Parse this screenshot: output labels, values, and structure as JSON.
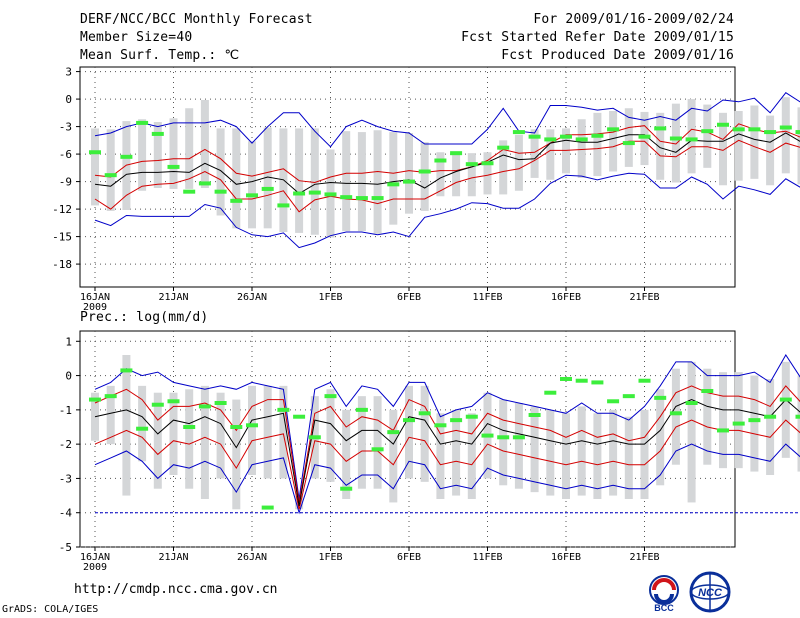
{
  "header": {
    "title": "DERF/NCC/BCC Monthly Forecast",
    "member_size": "Member Size=40",
    "variable_top": "Mean Surf. Temp.: ℃",
    "period": "For 2009/01/16-2009/02/24",
    "refer_date": "Fcst Started Refer Date 2009/01/15",
    "produced_date": "Fcst Produced Date 2009/01/16"
  },
  "colors": {
    "envelope": "#0000c8",
    "quartile": "#d40000",
    "median": "#000000",
    "box": "#d4d6d8",
    "mean_marker": "#3cee3c",
    "grid": "#555555"
  },
  "chart_data": [
    {
      "type": "box",
      "title": "Mean Surf. Temp.: ℃",
      "x_tick_labels": [
        "16JAN",
        "21JAN",
        "26JAN",
        "1FEB",
        "6FEB",
        "11FEB",
        "16FEB",
        "21FEB"
      ],
      "x_year_label": "2009",
      "x_range": [
        1,
        40
      ],
      "y_ticks": [
        3,
        0,
        -3,
        -6,
        -9,
        -12,
        -15,
        -18
      ],
      "ylim": [
        -20.5,
        3.5
      ],
      "series": {
        "max": [
          -4,
          -3.7,
          -3,
          -2.6,
          -3,
          -2.6,
          -2.6,
          -2.6,
          -2.3,
          -3,
          -4.8,
          -3,
          -1.5,
          -1.5,
          -3.5,
          -5.2,
          -3,
          -2.3,
          -3,
          -3.5,
          -3.7,
          -4.9,
          -4.9,
          -4.9,
          -4.9,
          -3.3,
          -1,
          -3.5,
          -3.7,
          -0.7,
          -0.7,
          -0.9,
          -1.2,
          -1,
          -2,
          -2.3,
          -1.9,
          -2.3,
          -1,
          -1.3,
          -0.1,
          -0.3,
          0.1,
          -1.5,
          0.7,
          -0.4,
          -0.3,
          -0.9,
          -1.1,
          0.2,
          0.1
        ],
        "p75": [
          -8.3,
          -8.5,
          -7.2,
          -6.8,
          -6.7,
          -6.5,
          -6.5,
          -5.5,
          -6.5,
          -8.1,
          -8.4,
          -8.0,
          -7.6,
          -8.9,
          -9.1,
          -8.5,
          -8.1,
          -8.1,
          -7.9,
          -8.1,
          -7.8,
          -8.0,
          -7.8,
          -7.8,
          -7.4,
          -6.7,
          -5.5,
          -5.9,
          -5.8,
          -4.8,
          -3.9,
          -3.9,
          -3.8,
          -3.6,
          -3.1,
          -2.9,
          -4.6,
          -4.9,
          -3.3,
          -3.6,
          -4.4,
          -2.7,
          -3.3,
          -3.7,
          -3.5,
          -4.2,
          -4.0,
          -3.5,
          -3.5,
          -2.4,
          -2.5
        ],
        "median": [
          -9.3,
          -9.5,
          -8.2,
          -8.0,
          -8.0,
          -7.9,
          -8.0,
          -7.0,
          -7.8,
          -9.3,
          -9.0,
          -8.5,
          -8.8,
          -10.3,
          -9.3,
          -9.1,
          -9.2,
          -9.2,
          -9.3,
          -9.0,
          -8.8,
          -9.7,
          -8.6,
          -7.9,
          -7.4,
          -6.9,
          -6.1,
          -6.6,
          -6.5,
          -4.8,
          -4.5,
          -4.7,
          -4.7,
          -4.3,
          -3.9,
          -3.9,
          -5.3,
          -5.8,
          -4.5,
          -4.6,
          -4.6,
          -3.8,
          -4.4,
          -4.7,
          -3.7,
          -4.7,
          -4.7,
          -4.3,
          -5.3,
          -3.2,
          -3.3
        ],
        "p25": [
          -10.9,
          -12.0,
          -10.5,
          -9.5,
          -9.3,
          -9.2,
          -8.7,
          -7.9,
          -8.8,
          -10.9,
          -10.9,
          -10.5,
          -10.0,
          -12.3,
          -11.0,
          -10.6,
          -10.9,
          -11.0,
          -11.4,
          -10.9,
          -10.9,
          -10.9,
          -10.0,
          -9.1,
          -8.6,
          -8.3,
          -7.9,
          -7.6,
          -6.7,
          -5.6,
          -5.6,
          -5.5,
          -5.4,
          -5.2,
          -4.6,
          -4.6,
          -6.2,
          -6.3,
          -5.2,
          -5.2,
          -5.6,
          -4.5,
          -5.2,
          -5.8,
          -4.8,
          -5.3,
          -5.5,
          -5.9,
          -6.5,
          -4.4,
          -4.3
        ],
        "min": [
          -13.2,
          -13.8,
          -12.7,
          -12.8,
          -12.8,
          -12.8,
          -12.8,
          -11.5,
          -11.9,
          -14.0,
          -14.8,
          -15.0,
          -14.6,
          -16.2,
          -15.7,
          -14.9,
          -14.5,
          -14.5,
          -14.8,
          -14.5,
          -15.0,
          -12.9,
          -12.5,
          -12.0,
          -11.3,
          -11.4,
          -11.9,
          -11.9,
          -10.9,
          -9.2,
          -8.3,
          -8.4,
          -8.8,
          -8.4,
          -8.1,
          -8.2,
          -9.7,
          -9.7,
          -8.5,
          -9.3,
          -10.9,
          -9.5,
          -9.9,
          -10.4,
          -8.7,
          -9.7,
          -9.6,
          -8.8,
          -10.7,
          -8.0,
          -7.9
        ],
        "box_hi": [
          -3.2,
          -3.3,
          -2.4,
          -2.2,
          -2.5,
          -2.1,
          -1.0,
          -0.1,
          -3.2,
          -3.2,
          -4.6,
          -3.1,
          -3.2,
          -3.2,
          -3.2,
          -5.5,
          -3.5,
          -3.6,
          -3.4,
          -3.6,
          -3.7,
          -4.7,
          -5.8,
          -5.8,
          -5.9,
          -5.8,
          -4.5,
          -3.9,
          -3.3,
          -3.3,
          -3.2,
          -2.2,
          -1.5,
          -1.3,
          -1.0,
          -1.4,
          -1.5,
          -0.5,
          0.0,
          -0.6,
          -1.5,
          -1.3,
          -0.7,
          -1.8,
          0.2,
          -0.9,
          -0.9,
          -1.2,
          -1.1,
          -0.3,
          -0.2
        ],
        "box_lo": [
          -11.6,
          -12.2,
          -12.1,
          -10.0,
          -9.7,
          -9.8,
          -9.8,
          -9.7,
          -12.7,
          -14.1,
          -14.1,
          -14.1,
          -14.5,
          -14.6,
          -14.8,
          -15.1,
          -14.4,
          -14.4,
          -14.7,
          -13.7,
          -12.5,
          -12.2,
          -10.6,
          -10.6,
          -10.6,
          -10.4,
          -10.4,
          -10.0,
          -8.6,
          -8.8,
          -8.1,
          -8.6,
          -8.4,
          -7.9,
          -7.4,
          -7.2,
          -8.8,
          -9.1,
          -8.1,
          -7.5,
          -9.4,
          -8.9,
          -8.7,
          -9.4,
          -8.1,
          -9.3,
          -9.1,
          -8.0,
          -9.3,
          -7.4,
          -7.6
        ],
        "mean": [
          -5.8,
          -8.3,
          -6.3,
          -2.6,
          -3.8,
          -7.4,
          -10.1,
          -9.2,
          -10.1,
          -11.1,
          -10.5,
          -9.8,
          -11.6,
          -10.3,
          -10.2,
          -10.4,
          -10.7,
          -10.8,
          -10.8,
          -9.3,
          -9.0,
          -7.9,
          -6.7,
          -5.9,
          -7.1,
          -7.0,
          -5.3,
          -3.6,
          -4.1,
          -4.4,
          -4.1,
          -4.4,
          -4.0,
          -3.3,
          -4.8,
          -4.1,
          -3.2,
          -4.3,
          -4.4,
          -3.5,
          -2.8,
          -3.3,
          -3.3,
          -3.6,
          -3.1,
          -3.6,
          -4.7,
          -3.7,
          -4.6,
          -3.2,
          -2.5
        ]
      }
    },
    {
      "type": "box",
      "title": "Prec.: log(mm/d)",
      "x_tick_labels": [
        "16JAN",
        "21JAN",
        "26JAN",
        "1FEB",
        "6FEB",
        "11FEB",
        "16FEB",
        "21FEB"
      ],
      "x_year_label": "2009",
      "x_range": [
        1,
        40
      ],
      "y_ticks": [
        1,
        0,
        -1,
        -2,
        -3,
        -4,
        -5
      ],
      "ylim": [
        -5,
        1.3
      ],
      "series": {
        "max": [
          -0.4,
          -0.2,
          0.2,
          0.0,
          0.1,
          -0.2,
          -0.3,
          -0.4,
          -0.3,
          -0.4,
          -0.2,
          -0.3,
          -0.4,
          -3.6,
          -0.4,
          -0.2,
          -0.9,
          -0.3,
          -0.4,
          -0.9,
          -0.2,
          -0.2,
          -1.2,
          -1.0,
          -0.9,
          -0.5,
          -0.7,
          -0.8,
          -0.9,
          -1.0,
          -1.1,
          -0.8,
          -1.1,
          -1.1,
          -1.3,
          -0.9,
          -0.3,
          0.4,
          0.4,
          0.0,
          0.0,
          0.0,
          0.1,
          -0.2,
          0.6,
          -0.1,
          -0.5,
          -0.3,
          -0.1,
          0.3,
          -0.6
        ],
        "p75": [
          -0.8,
          -0.6,
          -0.4,
          -0.7,
          -1.3,
          -0.9,
          -0.9,
          -0.8,
          -1.0,
          -1.6,
          -0.9,
          -0.7,
          -0.7,
          -3.7,
          -1.1,
          -0.9,
          -1.5,
          -1.2,
          -1.3,
          -1.6,
          -0.7,
          -0.9,
          -1.7,
          -1.6,
          -1.7,
          -1.1,
          -1.3,
          -1.4,
          -1.5,
          -1.6,
          -1.8,
          -1.6,
          -1.8,
          -1.7,
          -1.9,
          -1.8,
          -1.2,
          -0.5,
          -0.3,
          -0.5,
          -0.6,
          -0.6,
          -0.7,
          -0.9,
          -0.3,
          -0.8,
          -1.2,
          -1.0,
          -0.7,
          -0.3,
          -1.5
        ],
        "median": [
          -1.2,
          -1.1,
          -1.0,
          -1.2,
          -1.7,
          -1.3,
          -1.4,
          -1.2,
          -1.4,
          -2.1,
          -1.3,
          -1.2,
          -1.1,
          -3.8,
          -1.3,
          -1.4,
          -1.9,
          -1.6,
          -1.6,
          -2.0,
          -1.2,
          -1.3,
          -2.0,
          -1.9,
          -2.0,
          -1.4,
          -1.6,
          -1.7,
          -1.8,
          -1.9,
          -2.0,
          -1.9,
          -2.0,
          -1.9,
          -2.0,
          -2.0,
          -1.6,
          -0.9,
          -0.7,
          -0.9,
          -1.0,
          -1.0,
          -1.1,
          -1.2,
          -0.7,
          -1.1,
          -1.5,
          -1.3,
          -1.0,
          -0.6,
          -1.8
        ],
        "p25": [
          -2.0,
          -1.8,
          -1.6,
          -1.8,
          -2.3,
          -1.9,
          -2.0,
          -1.8,
          -2.0,
          -2.7,
          -1.9,
          -1.8,
          -1.7,
          -3.9,
          -1.9,
          -2.0,
          -2.5,
          -2.2,
          -2.2,
          -2.6,
          -1.8,
          -1.9,
          -2.6,
          -2.5,
          -2.6,
          -2.0,
          -2.2,
          -2.3,
          -2.4,
          -2.5,
          -2.6,
          -2.5,
          -2.6,
          -2.5,
          -2.6,
          -2.6,
          -2.2,
          -1.5,
          -1.3,
          -1.5,
          -1.6,
          -1.6,
          -1.7,
          -1.8,
          -1.3,
          -1.7,
          -2.1,
          -1.9,
          -1.6,
          -1.2,
          -2.4
        ],
        "min": [
          -2.6,
          -2.4,
          -2.2,
          -2.5,
          -3.0,
          -2.6,
          -2.7,
          -2.5,
          -2.7,
          -3.4,
          -2.6,
          -2.5,
          -2.4,
          -4.0,
          -2.6,
          -2.7,
          -3.2,
          -2.9,
          -2.9,
          -3.3,
          -2.5,
          -2.6,
          -3.3,
          -3.2,
          -3.3,
          -2.7,
          -2.9,
          -3.0,
          -3.1,
          -3.2,
          -3.3,
          -3.2,
          -3.3,
          -3.2,
          -3.3,
          -3.3,
          -2.9,
          -2.2,
          -2.0,
          -2.2,
          -2.3,
          -2.3,
          -2.4,
          -2.5,
          -2.0,
          -2.4,
          -2.8,
          -2.6,
          -2.3,
          -1.9,
          -3.1
        ],
        "box_hi": [
          -0.5,
          -0.3,
          0.6,
          -0.3,
          -0.5,
          -0.5,
          -0.4,
          -0.3,
          -0.5,
          -0.7,
          -0.3,
          -0.3,
          -0.3,
          -3.5,
          -0.6,
          -0.4,
          -1.0,
          -0.6,
          -0.6,
          -1.0,
          -0.3,
          -0.3,
          -1.1,
          -1.0,
          -1.1,
          -0.5,
          -0.7,
          -0.8,
          -0.9,
          -1.0,
          -1.1,
          -0.9,
          -1.1,
          -1.0,
          -1.2,
          -1.0,
          -0.4,
          0.2,
          0.4,
          0.2,
          0.1,
          0.1,
          0.0,
          -0.1,
          0.4,
          0.0,
          -0.3,
          -0.1,
          0.0,
          0.3,
          -0.5
        ],
        "box_lo": [
          -1.9,
          -2.0,
          -3.5,
          -2.5,
          -3.3,
          -2.9,
          -3.3,
          -3.6,
          -3.0,
          -3.9,
          -2.9,
          -3.0,
          -3.0,
          -3.9,
          -3.0,
          -3.1,
          -3.6,
          -3.3,
          -3.3,
          -3.7,
          -3.0,
          -3.1,
          -3.6,
          -3.5,
          -3.6,
          -3.0,
          -3.2,
          -3.3,
          -3.4,
          -3.5,
          -3.6,
          -3.5,
          -3.6,
          -3.5,
          -3.6,
          -3.6,
          -3.2,
          -2.6,
          -3.7,
          -2.6,
          -2.7,
          -2.7,
          -2.8,
          -2.9,
          -2.4,
          -2.8,
          -3.2,
          -3.0,
          -2.7,
          -2.3,
          -3.4
        ],
        "mean": [
          -0.7,
          -0.6,
          0.15,
          -1.55,
          -0.85,
          -0.75,
          -1.5,
          -0.9,
          -0.8,
          -1.5,
          -1.45,
          -3.85,
          -1.0,
          -1.2,
          -1.8,
          -0.6,
          -3.3,
          -1.0,
          -2.15,
          -1.65,
          -1.3,
          -1.1,
          -1.45,
          -1.3,
          -1.2,
          -1.75,
          -1.8,
          -1.8,
          -1.15,
          -0.5,
          -0.1,
          -0.15,
          -0.2,
          -0.75,
          -0.6,
          -0.15,
          -0.65,
          -1.1,
          -0.8,
          -0.45,
          -1.6,
          -1.4,
          -1.3,
          -1.2,
          -0.7,
          -1.2,
          -1.6,
          -1.4,
          -1.1,
          -0.7,
          -1.6
        ],
        "floor": -4.0
      }
    }
  ],
  "footer": {
    "url": "http://cmdp.ncc.cma.gov.cn",
    "credit": "GrADS: COLA/IGES",
    "logo_left": "BCC",
    "logo_right": "NCC"
  }
}
